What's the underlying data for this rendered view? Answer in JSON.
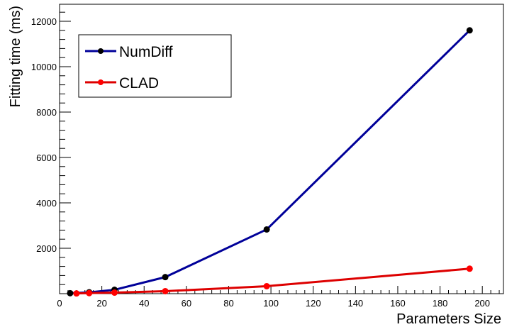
{
  "chart_data": {
    "type": "line",
    "xlabel": "Parameters Size",
    "ylabel": "Fitting time (ms)",
    "xlim": [
      0,
      210
    ],
    "ylim": [
      0,
      12750
    ],
    "x_ticks": [
      0,
      20,
      40,
      60,
      80,
      100,
      120,
      140,
      160,
      180,
      200
    ],
    "y_ticks": [
      2000,
      4000,
      6000,
      8000,
      10000,
      12000
    ],
    "grid": false,
    "legend_position": "top-left",
    "series": [
      {
        "name": "NumDiff",
        "color": "#000099",
        "marker_color": "#000000",
        "x": [
          5,
          14,
          26,
          50,
          98,
          194
        ],
        "y": [
          20,
          60,
          170,
          730,
          2830,
          11600
        ]
      },
      {
        "name": "CLAD",
        "color": "#dd0000",
        "marker_color": "#ff0000",
        "x": [
          8,
          14,
          26,
          50,
          98,
          194
        ],
        "y": [
          10,
          25,
          45,
          110,
          330,
          1100
        ]
      }
    ]
  }
}
